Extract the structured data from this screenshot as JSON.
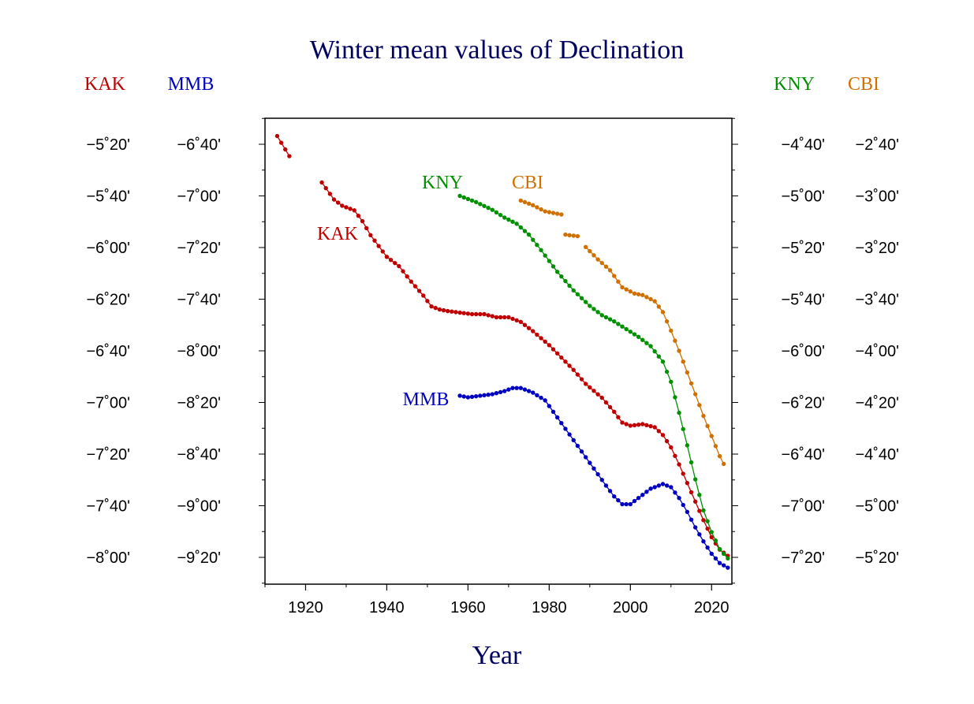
{
  "chart_data": {
    "type": "line",
    "title": "Winter mean values of Declination",
    "xlabel": "Year",
    "xlim": [
      1910,
      2025
    ],
    "x_ticks": [
      1920,
      1940,
      1960,
      1980,
      2000,
      2020
    ],
    "grid": false,
    "y_axes": [
      {
        "name": "KAK",
        "color": "#c00000",
        "side": "left",
        "ticks": [
          "−5˚20'",
          "−5˚40'",
          "−6˚00'",
          "−6˚20'",
          "−6˚40'",
          "−7˚00'",
          "−7˚20'",
          "−7˚40'",
          "−8˚00'"
        ]
      },
      {
        "name": "MMB",
        "color": "#0000c0",
        "side": "left",
        "ticks": [
          "−6˚40'",
          "−7˚00'",
          "−7˚20'",
          "−7˚40'",
          "−8˚00'",
          "−8˚20'",
          "−8˚40'",
          "−9˚00'",
          "−9˚20'"
        ]
      },
      {
        "name": "KNY",
        "color": "#009000",
        "side": "right",
        "ticks": [
          "−4˚40'",
          "−5˚00'",
          "−5˚20'",
          "−5˚40'",
          "−6˚00'",
          "−6˚20'",
          "−6˚40'",
          "−7˚00'",
          "−7˚20'"
        ]
      },
      {
        "name": "CBI",
        "color": "#d07000",
        "side": "right",
        "ticks": [
          "−2˚40'",
          "−3˚00'",
          "−3˚20'",
          "−3˚40'",
          "−4˚00'",
          "−4˚20'",
          "−4˚40'",
          "−5˚00'",
          "−5˚20'"
        ]
      }
    ],
    "series": [
      {
        "name": "KAK",
        "color": "#c00000",
        "unit": "degrees",
        "segments": [
          {
            "x": [
              1913,
              1916
            ],
            "y": [
              -5.28,
              -5.41
            ]
          },
          {
            "x": [
              1924,
              1927,
              1929,
              1932,
              1934,
              1936,
              1938,
              1940,
              1943,
              1946,
              1949,
              1951,
              1953,
              1955,
              1958,
              1961,
              1964,
              1967,
              1970,
              1973,
              1976,
              1980,
              1983,
              1986,
              1989,
              1993,
              1996,
              1998,
              2000,
              2003,
              2006,
              2008,
              2010,
              2012,
              2014,
              2016,
              2018,
              2020,
              2022,
              2024
            ],
            "y": [
              -5.58,
              -5.69,
              -5.73,
              -5.76,
              -5.83,
              -5.92,
              -5.99,
              -6.06,
              -6.12,
              -6.22,
              -6.31,
              -6.38,
              -6.4,
              -6.41,
              -6.42,
              -6.43,
              -6.43,
              -6.45,
              -6.45,
              -6.48,
              -6.54,
              -6.63,
              -6.71,
              -6.79,
              -6.88,
              -6.97,
              -7.06,
              -7.13,
              -7.15,
              -7.14,
              -7.16,
              -7.21,
              -7.29,
              -7.4,
              -7.52,
              -7.64,
              -7.76,
              -7.87,
              -7.95,
              -7.99
            ]
          }
        ]
      },
      {
        "name": "MMB",
        "color": "#0000c0",
        "unit": "degrees",
        "segments": [
          {
            "x": [
              1958,
              1960,
              1963,
              1966,
              1969,
              1971,
              1973,
              1976,
              1979,
              1982,
              1985,
              1988,
              1991,
              1994,
              1996,
              1998,
              2000,
              2002,
              2005,
              2008,
              2010,
              2012,
              2014,
              2016,
              2018,
              2020,
              2022,
              2024
            ],
            "y": [
              -8.29,
              -8.3,
              -8.29,
              -8.28,
              -8.26,
              -8.24,
              -8.24,
              -8.27,
              -8.32,
              -8.43,
              -8.54,
              -8.65,
              -8.76,
              -8.87,
              -8.94,
              -8.99,
              -8.99,
              -8.95,
              -8.89,
              -8.86,
              -8.88,
              -8.95,
              -9.04,
              -9.14,
              -9.23,
              -9.31,
              -9.37,
              -9.4
            ]
          }
        ]
      },
      {
        "name": "KNY",
        "color": "#009000",
        "unit": "degrees",
        "segments": [
          {
            "x": [
              1958,
              1962,
              1966,
              1969,
              1972,
              1975,
              1978,
              1982,
              1986,
              1990,
              1993,
              1996,
              1999,
              2002,
              2005,
              2008,
              2010,
              2012,
              2014,
              2016,
              2018,
              2020,
              2022,
              2024
            ],
            "y": [
              -5.0,
              -5.04,
              -5.09,
              -5.14,
              -5.18,
              -5.25,
              -5.35,
              -5.49,
              -5.61,
              -5.71,
              -5.77,
              -5.81,
              -5.86,
              -5.91,
              -5.97,
              -6.07,
              -6.2,
              -6.4,
              -6.61,
              -6.83,
              -7.03,
              -7.17,
              -7.28,
              -7.34
            ]
          }
        ]
      },
      {
        "name": "CBI",
        "color": "#d07000",
        "unit": "degrees",
        "segments": [
          {
            "x": [
              1973,
              1976,
              1979,
              1983
            ],
            "y": [
              -3.03,
              -3.06,
              -3.1,
              -3.12
            ]
          },
          {
            "x": [
              1984,
              1987
            ],
            "y": [
              -3.25,
              -3.26
            ]
          },
          {
            "x": [
              1989,
              1992,
              1995,
              1998,
              2001,
              2003,
              2006,
              2008,
              2010,
              2012,
              2014,
              2016,
              2018,
              2020,
              2022,
              2023
            ],
            "y": [
              -3.33,
              -3.41,
              -3.48,
              -3.59,
              -3.63,
              -3.64,
              -3.68,
              -3.75,
              -3.87,
              -4.0,
              -4.14,
              -4.28,
              -4.42,
              -4.55,
              -4.68,
              -4.73
            ]
          }
        ]
      }
    ],
    "annotations": [
      {
        "text": "KAK",
        "color": "#c00000"
      },
      {
        "text": "MMB",
        "color": "#0000c0"
      },
      {
        "text": "KNY",
        "color": "#009000"
      },
      {
        "text": "CBI",
        "color": "#d07000"
      }
    ]
  }
}
